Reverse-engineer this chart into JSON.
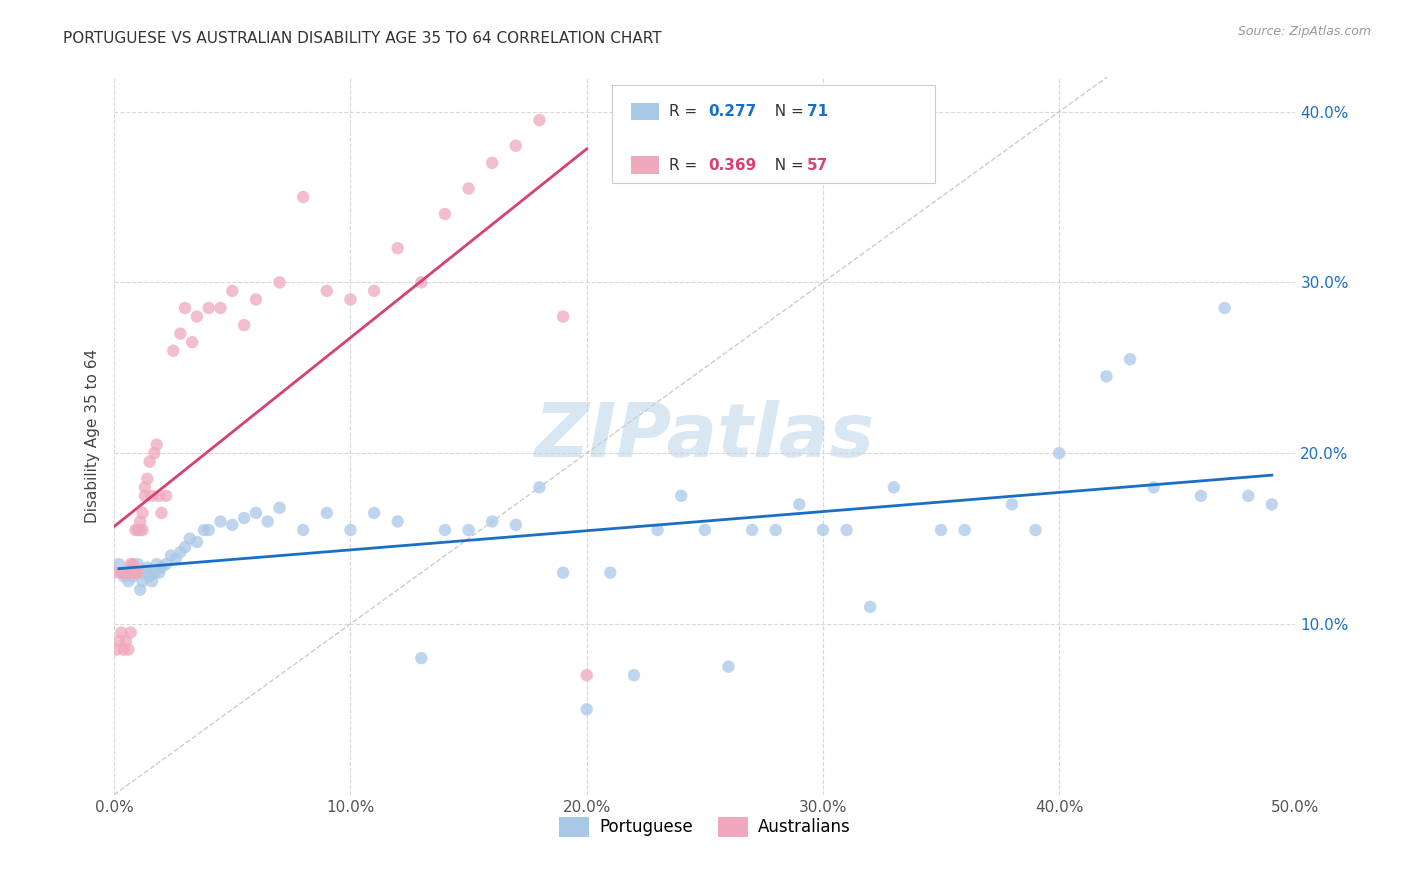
{
  "title": "PORTUGUESE VS AUSTRALIAN DISABILITY AGE 35 TO 64 CORRELATION CHART",
  "source": "Source: ZipAtlas.com",
  "ylabel": "Disability Age 35 to 64",
  "xlim": [
    0.0,
    0.5
  ],
  "ylim": [
    0.0,
    0.42
  ],
  "xticks": [
    0.0,
    0.1,
    0.2,
    0.3,
    0.4,
    0.5
  ],
  "yticks": [
    0.0,
    0.1,
    0.2,
    0.3,
    0.4
  ],
  "xtick_labels": [
    "0.0%",
    "10.0%",
    "20.0%",
    "30.0%",
    "40.0%",
    "50.0%"
  ],
  "ytick_labels": [
    "",
    "10.0%",
    "20.0%",
    "30.0%",
    "40.0%"
  ],
  "watermark": "ZIPatlas",
  "color_portuguese": "#a8c8e8",
  "color_australians": "#f0a8bc",
  "color_line_portuguese": "#1a6fc4",
  "color_line_australians": "#d84070",
  "color_diagonal": "#cccccc",
  "background_color": "#ffffff",
  "title_fontsize": 11,
  "portuguese_x": [
    0.002,
    0.004,
    0.005,
    0.006,
    0.007,
    0.008,
    0.009,
    0.01,
    0.011,
    0.012,
    0.013,
    0.014,
    0.015,
    0.016,
    0.017,
    0.018,
    0.019,
    0.02,
    0.022,
    0.024,
    0.026,
    0.028,
    0.03,
    0.032,
    0.035,
    0.038,
    0.04,
    0.045,
    0.05,
    0.055,
    0.06,
    0.065,
    0.07,
    0.08,
    0.09,
    0.1,
    0.11,
    0.12,
    0.13,
    0.14,
    0.15,
    0.16,
    0.17,
    0.18,
    0.19,
    0.2,
    0.21,
    0.22,
    0.23,
    0.24,
    0.25,
    0.26,
    0.27,
    0.28,
    0.29,
    0.3,
    0.31,
    0.32,
    0.33,
    0.35,
    0.36,
    0.38,
    0.39,
    0.4,
    0.42,
    0.43,
    0.44,
    0.46,
    0.47,
    0.48,
    0.49
  ],
  "portuguese_y": [
    0.135,
    0.128,
    0.13,
    0.125,
    0.132,
    0.128,
    0.13,
    0.135,
    0.12,
    0.125,
    0.13,
    0.133,
    0.128,
    0.125,
    0.13,
    0.135,
    0.13,
    0.133,
    0.135,
    0.14,
    0.138,
    0.142,
    0.145,
    0.15,
    0.148,
    0.155,
    0.155,
    0.16,
    0.158,
    0.162,
    0.165,
    0.16,
    0.168,
    0.155,
    0.165,
    0.155,
    0.165,
    0.16,
    0.08,
    0.155,
    0.155,
    0.16,
    0.158,
    0.18,
    0.13,
    0.05,
    0.13,
    0.07,
    0.155,
    0.175,
    0.155,
    0.075,
    0.155,
    0.155,
    0.17,
    0.155,
    0.155,
    0.11,
    0.18,
    0.155,
    0.155,
    0.17,
    0.155,
    0.2,
    0.245,
    0.255,
    0.18,
    0.175,
    0.285,
    0.175,
    0.17
  ],
  "australians_x": [
    0.0,
    0.001,
    0.002,
    0.003,
    0.003,
    0.004,
    0.004,
    0.005,
    0.005,
    0.006,
    0.006,
    0.007,
    0.007,
    0.008,
    0.008,
    0.009,
    0.009,
    0.01,
    0.01,
    0.011,
    0.011,
    0.012,
    0.012,
    0.013,
    0.013,
    0.014,
    0.015,
    0.016,
    0.017,
    0.018,
    0.019,
    0.02,
    0.022,
    0.025,
    0.028,
    0.03,
    0.033,
    0.035,
    0.04,
    0.045,
    0.05,
    0.055,
    0.06,
    0.07,
    0.08,
    0.09,
    0.1,
    0.11,
    0.12,
    0.13,
    0.14,
    0.15,
    0.16,
    0.17,
    0.18,
    0.19,
    0.2
  ],
  "australians_y": [
    0.13,
    0.085,
    0.09,
    0.095,
    0.13,
    0.085,
    0.13,
    0.09,
    0.13,
    0.085,
    0.13,
    0.095,
    0.135,
    0.13,
    0.135,
    0.155,
    0.13,
    0.155,
    0.13,
    0.16,
    0.155,
    0.165,
    0.155,
    0.175,
    0.18,
    0.185,
    0.195,
    0.175,
    0.2,
    0.205,
    0.175,
    0.165,
    0.175,
    0.26,
    0.27,
    0.285,
    0.265,
    0.28,
    0.285,
    0.285,
    0.295,
    0.275,
    0.29,
    0.3,
    0.35,
    0.295,
    0.29,
    0.295,
    0.32,
    0.3,
    0.34,
    0.355,
    0.37,
    0.38,
    0.395,
    0.28,
    0.07
  ]
}
